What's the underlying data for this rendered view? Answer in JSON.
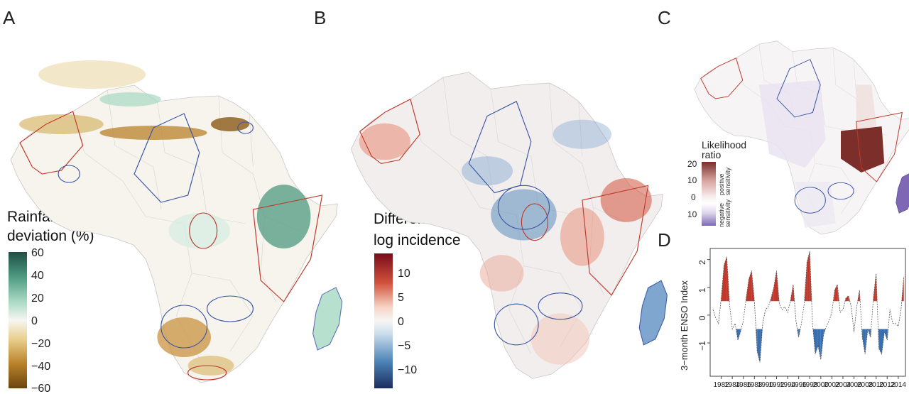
{
  "panels": {
    "a": {
      "letter": "A",
      "legend_title": [
        "Rainfall",
        "deviation (%)"
      ],
      "ticks": [
        "60",
        "40",
        "20",
        "0",
        "−20",
        "−40",
        "−60"
      ],
      "colors": [
        "#1f4e43",
        "#4d9a80",
        "#a8d8c4",
        "#f4f4f0",
        "#e9cf8c",
        "#b9822a",
        "#6b4410"
      ]
    },
    "b": {
      "letter": "B",
      "legend_title": [
        "Difference",
        "log incidence"
      ],
      "ticks": [
        "10",
        "5",
        "0",
        "−5",
        "−10"
      ],
      "colors": [
        "#7a0b1a",
        "#d2533e",
        "#f7d5c6",
        "#f4f4f4",
        "#c9dceb",
        "#4d84b8",
        "#1c2d5e"
      ]
    },
    "c": {
      "letter": "C",
      "legend_title": [
        "Likelihood",
        "ratio"
      ],
      "ticks": [
        "20",
        "10",
        "0",
        "10"
      ],
      "pos_label": [
        "positive",
        "sensitivity"
      ],
      "neg_label": [
        "negative",
        "sensitivity"
      ],
      "colors": [
        "#7b2e2a",
        "#d9a6a2",
        "#f2e6e6",
        "#ffffff",
        "#dcd6ea",
        "#7e68b5"
      ]
    },
    "d": {
      "letter": "D",
      "ylabel": "3−month ENSO Index",
      "y_ticks": [
        "2",
        "1",
        "0",
        "−1"
      ],
      "x_ticks": [
        "1982",
        "1984",
        "1986",
        "1988",
        "1990",
        "1992",
        "1994",
        "1996",
        "1998",
        "2000",
        "2002",
        "2004",
        "2006",
        "2008",
        "2010",
        "2012",
        "2014"
      ]
    }
  },
  "chart_data": {
    "type": "area",
    "ylabel": "3−month ENSO Index",
    "ylim": [
      -2.2,
      2.4
    ],
    "xlim": [
      1980.0,
      2015.3
    ],
    "thresholds": [
      0.5,
      -0.5
    ],
    "colors": {
      "positive": "#c0392b",
      "negative": "#3a6fb0",
      "line": "#555555"
    },
    "x": [
      1980.5,
      1981.0,
      1981.5,
      1982.0,
      1982.5,
      1983.0,
      1983.5,
      1984.0,
      1984.5,
      1985.0,
      1985.5,
      1986.0,
      1986.5,
      1987.0,
      1987.5,
      1988.0,
      1988.5,
      1989.0,
      1989.5,
      1990.0,
      1990.5,
      1991.0,
      1991.5,
      1992.0,
      1992.5,
      1993.0,
      1993.5,
      1994.0,
      1994.5,
      1995.0,
      1995.5,
      1996.0,
      1996.5,
      1997.0,
      1997.5,
      1998.0,
      1998.5,
      1999.0,
      1999.5,
      2000.0,
      2000.5,
      2001.0,
      2001.5,
      2002.0,
      2002.5,
      2003.0,
      2003.5,
      2004.0,
      2004.5,
      2005.0,
      2005.5,
      2006.0,
      2006.5,
      2007.0,
      2007.5,
      2008.0,
      2008.5,
      2009.0,
      2009.5,
      2010.0,
      2010.5,
      2011.0,
      2011.5,
      2012.0,
      2012.5,
      2013.0,
      2013.5,
      2014.0,
      2014.5,
      2015.0
    ],
    "y": [
      0.2,
      -0.1,
      -0.3,
      0.6,
      1.8,
      2.1,
      0.4,
      -0.5,
      -0.3,
      -0.9,
      -0.6,
      -0.2,
      0.6,
      1.3,
      1.6,
      0.5,
      -1.3,
      -1.7,
      -0.3,
      0.2,
      0.3,
      0.6,
      1.0,
      1.6,
      0.4,
      0.2,
      0.3,
      0.1,
      0.5,
      1.1,
      -0.2,
      -0.8,
      -0.3,
      0.4,
      1.9,
      2.3,
      -0.3,
      -1.4,
      -1.1,
      -1.6,
      -0.7,
      -0.4,
      -0.2,
      0.1,
      0.9,
      1.1,
      0.1,
      0.2,
      0.6,
      0.7,
      0.3,
      -0.6,
      0.3,
      0.9,
      -0.8,
      -1.4,
      -0.5,
      -0.8,
      0.6,
      1.5,
      -1.2,
      -1.4,
      -0.6,
      -0.9,
      0.2,
      -0.3,
      -0.3,
      -0.4,
      0.2,
      1.4
    ]
  }
}
